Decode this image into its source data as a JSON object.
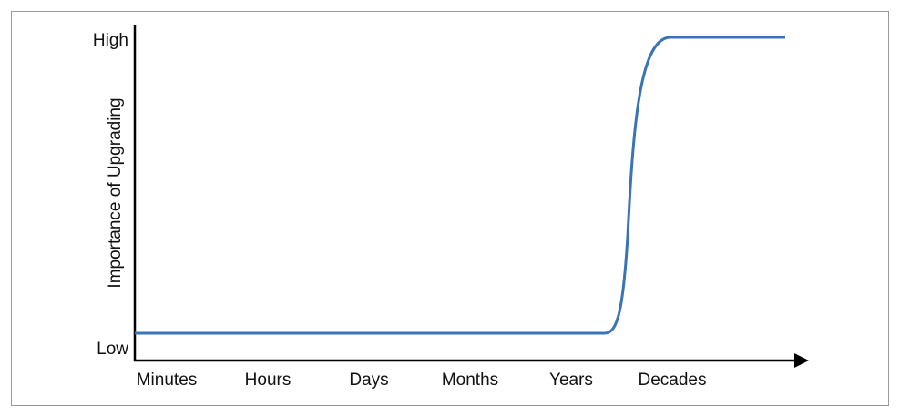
{
  "y_axis": {
    "title": "Importance of Upgrading",
    "labels": [
      "High",
      "Low"
    ]
  },
  "x_axis": {
    "labels": [
      "Minutes",
      "Hours",
      "Days",
      "Months",
      "Years",
      "Decades"
    ]
  }
}
